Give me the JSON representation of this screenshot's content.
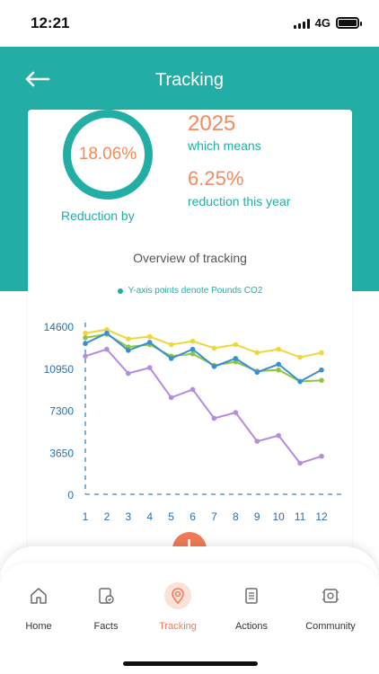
{
  "status_bar": {
    "time": "12:21",
    "network": "4G"
  },
  "header": {
    "title": "Tracking"
  },
  "summary": {
    "reduction_value": "18.06%",
    "reduction_caption": "Reduction by",
    "year_value": "2025",
    "year_caption": "which means",
    "percent_value": "6.25%",
    "percent_caption": "reduction this year"
  },
  "chart_title": "Overview of tracking",
  "legend_label": "Y-axis points denote Pounds CO2",
  "chart_data": {
    "type": "line",
    "title": "Overview of tracking",
    "legend": "Y-axis points denote Pounds CO2",
    "x": [
      1,
      2,
      3,
      4,
      5,
      6,
      7,
      8,
      9,
      10,
      11,
      12
    ],
    "yticks": [
      0,
      3650,
      7300,
      10950,
      14600
    ],
    "ylim": [
      0,
      14600
    ],
    "grid": false,
    "series": [
      {
        "color": "#f1d63b",
        "values": [
          14000,
          14300,
          13500,
          13700,
          13000,
          13300,
          12700,
          13000,
          12300,
          12600,
          11900,
          12300
        ]
      },
      {
        "color": "#8cc63f",
        "values": [
          13600,
          13900,
          12800,
          13000,
          12000,
          12200,
          11200,
          11500,
          10700,
          10800,
          9800,
          9900
        ]
      },
      {
        "color": "#3a8fd1",
        "values": [
          13100,
          14000,
          12500,
          13200,
          11800,
          12600,
          11100,
          11800,
          10600,
          11300,
          9800,
          10800
        ]
      },
      {
        "color": "#b48be0",
        "values": [
          12000,
          12600,
          10500,
          11000,
          8400,
          9100,
          6600,
          7100,
          4600,
          5100,
          2700,
          3300
        ]
      }
    ]
  },
  "nav": {
    "items": [
      {
        "label": "Home",
        "icon": "home-icon"
      },
      {
        "label": "Facts",
        "icon": "facts-icon"
      },
      {
        "label": "Tracking",
        "icon": "tracking-icon"
      },
      {
        "label": "Actions",
        "icon": "actions-icon"
      },
      {
        "label": "Community",
        "icon": "community-icon"
      }
    ],
    "active": "Tracking",
    "active_color": "#f07b56"
  },
  "colors": {
    "brand": "#22aea4",
    "accent": "#f28b5e"
  }
}
